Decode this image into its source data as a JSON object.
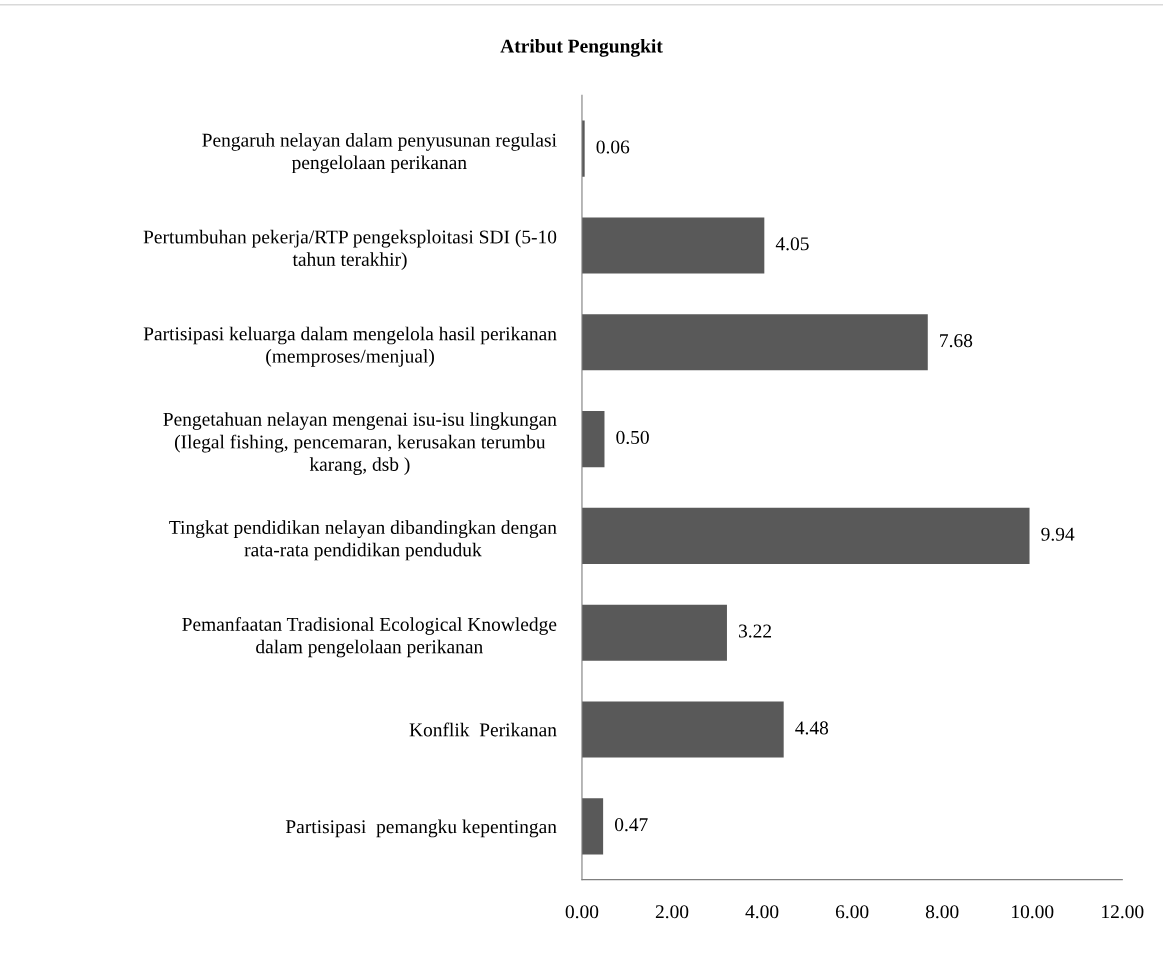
{
  "chart_data": {
    "type": "bar",
    "orientation": "horizontal",
    "title": "Atribut Pengungkit",
    "categories": [
      "Pengaruh nelayan dalam penyusunan regulasi\npengelolaan perikanan",
      "Pertumbuhan pekerja/RTP pengeksploitasi SDI (5-10\ntahun terakhir)",
      "Partisipasi keluarga dalam mengelola hasil perikanan\n(memproses/menjual)",
      "Pengetahuan nelayan mengenai isu-isu lingkungan\n(Ilegal fishing, pencemaran, kerusakan terumbu\nkarang, dsb )",
      "Tingkat pendidikan nelayan dibandingkan dengan\nrata-rata pendidikan penduduk",
      "Pemanfaatan Tradisional Ecological Knowledge\ndalam pengelolaan perikanan",
      "Konflik  Perikanan",
      "Partisipasi  pemangku kepentingan"
    ],
    "values": [
      0.06,
      4.05,
      7.68,
      0.5,
      9.94,
      3.22,
      4.48,
      0.47
    ],
    "value_labels": [
      "0.06",
      "4.05",
      "7.68",
      "0.50",
      "9.94",
      "3.22",
      "4.48",
      "0.47"
    ],
    "color": "#595959",
    "xlim": [
      0,
      12
    ],
    "xticks": [
      {
        "value": 0,
        "label": "0.00"
      },
      {
        "value": 2,
        "label": "2.00"
      },
      {
        "value": 4,
        "label": "4.00"
      },
      {
        "value": 6,
        "label": "6.00"
      },
      {
        "value": 8,
        "label": "8.00"
      },
      {
        "value": 10,
        "label": "10.00"
      },
      {
        "value": 12,
        "label": "12.00"
      }
    ],
    "grid": false,
    "legend": false
  }
}
